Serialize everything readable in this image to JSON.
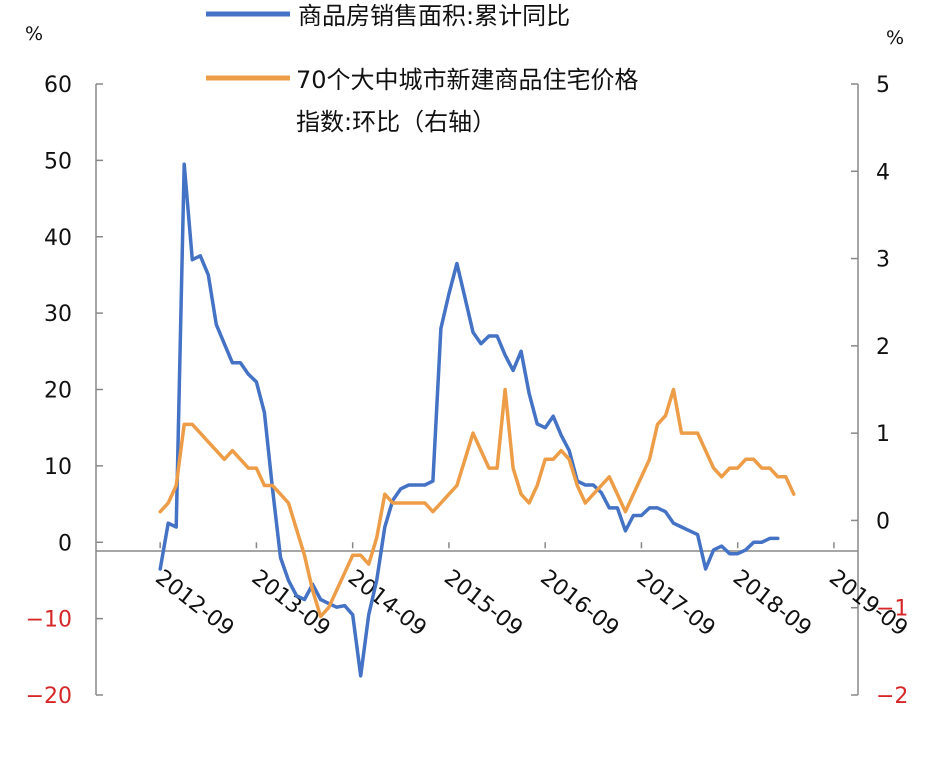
{
  "chart_data": {
    "type": "line",
    "x": [
      "2012-01",
      "2012-02",
      "2012-03",
      "2012-04",
      "2012-05",
      "2012-06",
      "2012-07",
      "2012-08",
      "2012-09",
      "2012-10",
      "2012-11",
      "2012-12",
      "2013-01",
      "2013-02",
      "2013-03",
      "2013-04",
      "2013-05",
      "2013-06",
      "2013-07",
      "2013-08",
      "2013-09",
      "2013-10",
      "2013-11",
      "2013-12",
      "2014-01",
      "2014-02",
      "2014-03",
      "2014-04",
      "2014-05",
      "2014-06",
      "2014-07",
      "2014-08",
      "2014-09",
      "2014-10",
      "2014-11",
      "2014-12",
      "2015-01",
      "2015-02",
      "2015-03",
      "2015-04",
      "2015-05",
      "2015-06",
      "2015-07",
      "2015-08",
      "2015-09",
      "2015-10",
      "2015-11",
      "2015-12",
      "2016-01",
      "2016-02",
      "2016-03",
      "2016-04",
      "2016-05",
      "2016-06",
      "2016-07",
      "2016-08",
      "2016-09",
      "2016-10",
      "2016-11",
      "2016-12",
      "2017-01",
      "2017-02",
      "2017-03",
      "2017-04",
      "2017-05",
      "2017-06",
      "2017-07",
      "2017-08",
      "2017-09",
      "2017-10",
      "2017-11",
      "2017-12",
      "2018-01",
      "2018-02",
      "2018-03",
      "2018-04",
      "2018-05",
      "2018-06",
      "2018-07",
      "2018-08",
      "2018-09",
      "2018-10",
      "2018-11",
      "2018-12",
      "2019-01",
      "2019-02",
      "2019-03",
      "2019-04",
      "2019-05",
      "2019-06",
      "2019-07",
      "2019-08",
      "2019-09",
      "2019-10",
      "2019-11",
      "2019-12"
    ],
    "series": [
      {
        "name": "商品房销售面积:累计同比",
        "axis": "left",
        "color": "#4472c4",
        "values": [
          null,
          null,
          null,
          null,
          null,
          null,
          null,
          null,
          -3.5,
          2.5,
          2.0,
          49.5,
          37.0,
          37.5,
          35.0,
          28.5,
          26.0,
          23.5,
          23.5,
          22.0,
          21.0,
          17.0,
          7.0,
          -2.0,
          -5.0,
          -7.0,
          -7.5,
          -5.5,
          -7.5,
          -8.0,
          -8.5,
          -8.3,
          -9.5,
          -17.5,
          -9.5,
          -5.0,
          2.0,
          5.5,
          7.0,
          7.5,
          7.5,
          7.5,
          8.0,
          28.0,
          32.5,
          36.5,
          32.0,
          27.5,
          26.0,
          27.0,
          27.0,
          24.5,
          22.5,
          25.0,
          19.5,
          15.5,
          15.0,
          16.5,
          14.0,
          12.0,
          8.0,
          7.5,
          7.5,
          6.5,
          4.5,
          4.5,
          1.5,
          3.5,
          3.5,
          4.5,
          4.5,
          4.0,
          2.5,
          2.0,
          1.5,
          1.0,
          -3.5,
          -1.0,
          -0.5,
          -1.5,
          -1.5,
          -1.0,
          0.0,
          0.0,
          0.5,
          0.5,
          null,
          null,
          null,
          null,
          null,
          null,
          null,
          null,
          null,
          null
        ]
      },
      {
        "name": "70个大中城市新建商品住宅价格指数:环比（右轴）",
        "axis": "right",
        "color": "#ed9d47",
        "values": [
          null,
          null,
          null,
          null,
          null,
          null,
          null,
          null,
          0.1,
          0.2,
          0.4,
          1.1,
          1.1,
          1.0,
          0.9,
          0.8,
          0.7,
          0.8,
          0.7,
          0.6,
          0.6,
          0.4,
          0.4,
          0.3,
          0.2,
          -0.1,
          -0.4,
          -0.8,
          -1.1,
          -1.0,
          -0.8,
          -0.6,
          -0.4,
          -0.4,
          -0.5,
          -0.2,
          0.3,
          0.2,
          0.2,
          0.2,
          0.2,
          0.2,
          0.1,
          0.2,
          0.3,
          0.4,
          0.7,
          1.0,
          0.8,
          0.6,
          0.6,
          1.5,
          0.6,
          0.3,
          0.2,
          0.4,
          0.7,
          0.7,
          0.8,
          0.7,
          0.4,
          0.2,
          0.3,
          0.4,
          0.5,
          0.3,
          0.1,
          0.3,
          0.5,
          0.7,
          1.1,
          1.2,
          1.5,
          1.0,
          1.0,
          1.0,
          0.8,
          0.6,
          0.5,
          0.6,
          0.6,
          0.7,
          0.7,
          0.6,
          0.6,
          0.5,
          0.5,
          0.3,
          null,
          null,
          null,
          null,
          null,
          null,
          null,
          null
        ]
      }
    ],
    "left_axis": {
      "unit_label": "%",
      "ylim": [
        -20,
        60
      ],
      "ticks": [
        "60",
        "50",
        "40",
        "30",
        "20",
        "10",
        "0",
        "−10",
        "−20"
      ]
    },
    "right_axis": {
      "unit_label": "%",
      "ylim": [
        -2,
        5
      ],
      "ticks": [
        "5",
        "4",
        "3",
        "2",
        "1",
        "0",
        "−1",
        "−2"
      ]
    },
    "x_tick_labels": [
      "2012-09",
      "2013-09",
      "2014-09",
      "2015-09",
      "2016-09",
      "2017-09",
      "2018-09",
      "2019-09"
    ],
    "legend_position": "top",
    "legend": {
      "line1": "商品房销售面积:累计同比",
      "line2a": "70个大中城市新建商品住宅价格",
      "line2b": "指数:环比（右轴）"
    },
    "negative_tick_color": "#d62728",
    "grid": false
  }
}
